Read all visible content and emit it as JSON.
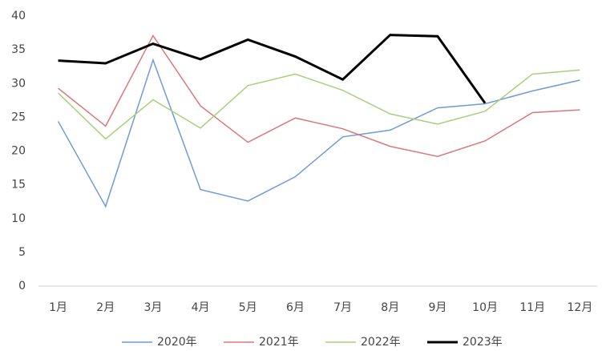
{
  "chart_data": {
    "type": "line",
    "categories": [
      "1月",
      "2月",
      "3月",
      "4月",
      "5月",
      "6月",
      "7月",
      "8月",
      "9月",
      "10月",
      "11月",
      "12月"
    ],
    "series": [
      {
        "name": "2020年",
        "color": "#6f9ad6",
        "values": [
          24.4,
          11.8,
          33.5,
          14.3,
          12.6,
          16.2,
          22.1,
          23.1,
          26.4,
          27.0,
          28.9,
          30.5
        ]
      },
      {
        "name": "2021年",
        "color": "#d9787a",
        "values": [
          29.3,
          23.7,
          37.1,
          26.7,
          21.3,
          24.9,
          23.3,
          20.7,
          19.2,
          21.5,
          25.7,
          26.1
        ]
      },
      {
        "name": "2022年",
        "color": "#a9cf7a",
        "values": [
          28.6,
          21.8,
          27.6,
          23.4,
          29.7,
          31.4,
          29.0,
          25.5,
          24.0,
          25.9,
          31.4,
          32.0
        ]
      },
      {
        "name": "2023年",
        "color": "#000000",
        "values": [
          33.4,
          33.0,
          35.9,
          33.6,
          36.5,
          34.0,
          30.6,
          37.2,
          37.0,
          27.1,
          null,
          null
        ]
      }
    ],
    "ylim": [
      0,
      40
    ],
    "yticks": [
      0,
      5,
      10,
      15,
      20,
      25,
      30,
      35,
      40
    ],
    "grid": false,
    "legend": "bottom"
  }
}
